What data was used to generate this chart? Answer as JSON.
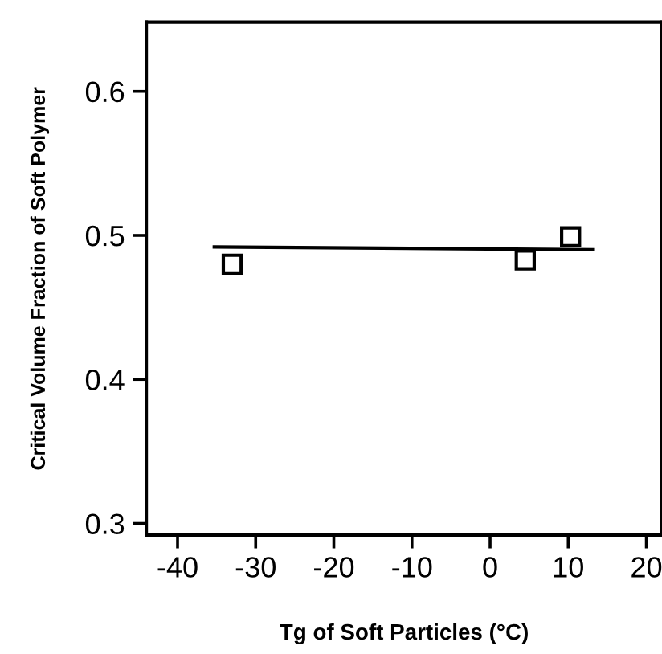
{
  "chart_data": {
    "type": "scatter",
    "xlabel": "Tg of Soft Particles (°C)",
    "ylabel": "Critical Volume Fraction of Soft Polymer",
    "series": [
      {
        "color": "#000000",
        "marker": "square",
        "x": [
          -33,
          4.5,
          10.3
        ],
        "values": [
          0.48,
          0.483,
          0.499
        ]
      },
      {
        "type": "line",
        "color": "#000000",
        "marker": "none",
        "x": [
          -35.3,
          13.1
        ],
        "values": [
          0.492,
          0.49
        ]
      }
    ],
    "xlim": [
      -44,
      22
    ],
    "xticks": [
      -40,
      -30,
      -20,
      -10,
      0,
      10,
      20
    ],
    "ylim": [
      0.292,
      0.648
    ],
    "yticks": [
      0.3,
      0.4,
      0.5,
      0.6
    ],
    "grid": false
  }
}
